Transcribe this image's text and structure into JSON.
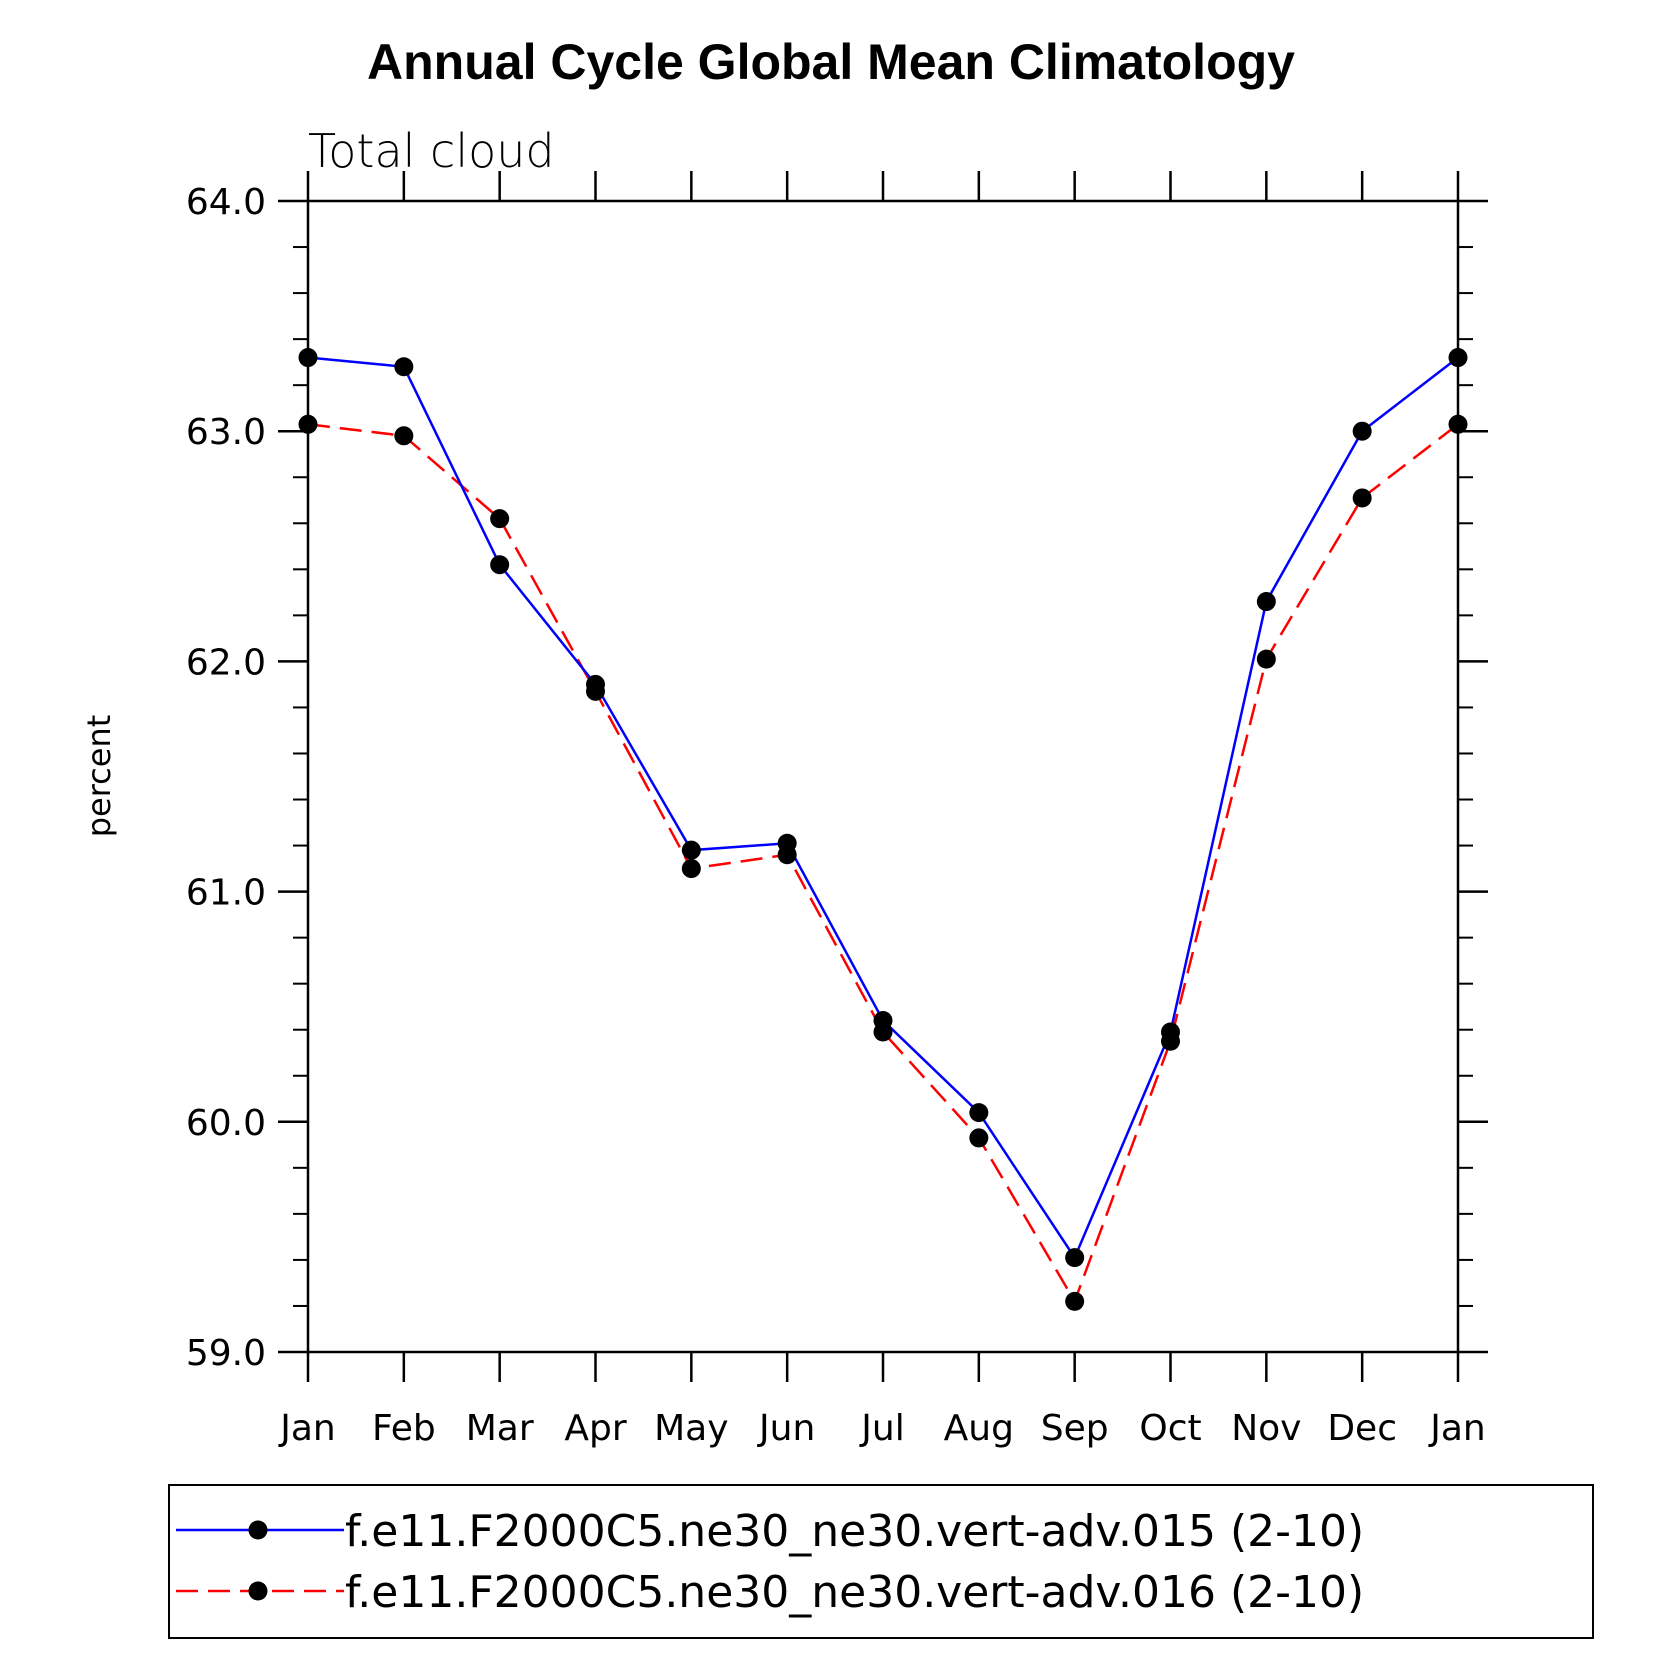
{
  "chart_data": {
    "type": "line",
    "title": "Annual Cycle Global Mean Climatology",
    "subtitle": "Total cloud",
    "xlabel": "",
    "ylabel": "percent",
    "categories": [
      "Jan",
      "Feb",
      "Mar",
      "Apr",
      "May",
      "Jun",
      "Jul",
      "Aug",
      "Sep",
      "Oct",
      "Nov",
      "Dec",
      "Jan"
    ],
    "ylim": [
      59.0,
      64.0
    ],
    "yticks": [
      "59.0",
      "60.0",
      "61.0",
      "62.0",
      "63.0",
      "64.0"
    ],
    "grid": false,
    "legend_position": "bottom",
    "series": [
      {
        "name": "f.e11.F2000C5.ne30_ne30.vert-adv.015 (2-10)",
        "color": "#0000ff",
        "dash": "solid",
        "marker": "filled-circle",
        "values": [
          63.32,
          63.28,
          62.42,
          61.9,
          61.18,
          61.21,
          60.44,
          60.04,
          59.41,
          60.39,
          62.26,
          63.0,
          63.32
        ]
      },
      {
        "name": "f.e11.F2000C5.ne30_ne30.vert-adv.016 (2-10)",
        "color": "#ff0000",
        "dash": "dashed",
        "marker": "filled-circle",
        "values": [
          63.03,
          62.98,
          62.62,
          61.87,
          61.1,
          61.16,
          60.39,
          59.93,
          59.22,
          60.35,
          62.01,
          62.71,
          63.03
        ]
      }
    ]
  }
}
